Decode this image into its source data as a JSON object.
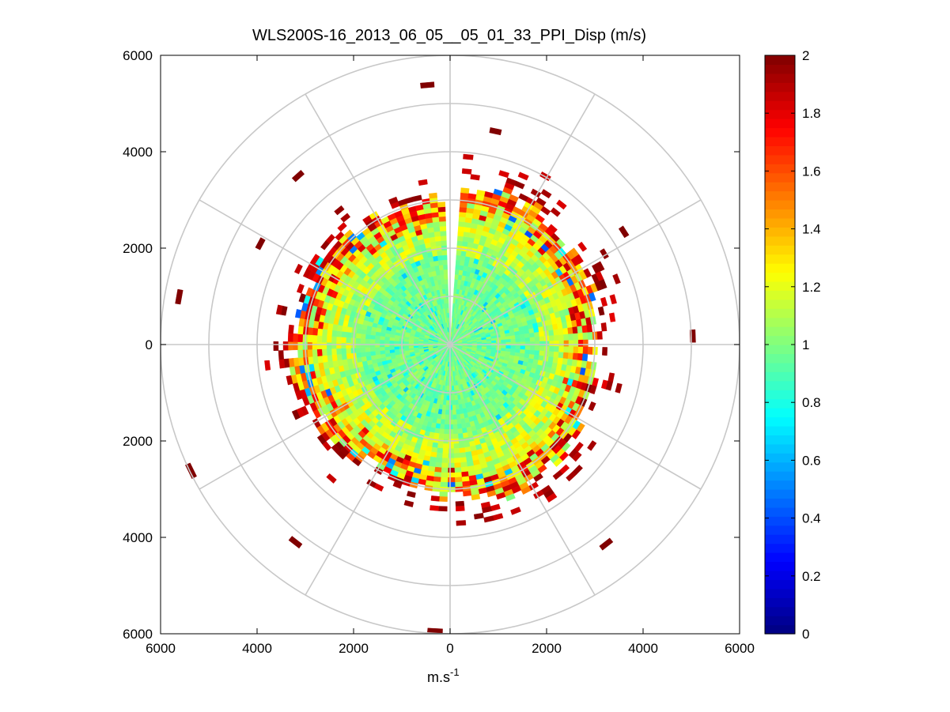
{
  "chart_data": {
    "type": "heatmap",
    "subtype": "polar-ppi",
    "title": "WLS200S-16_2013_06_05__05_01_33_PPI_Disp (m/s)",
    "xlabel": "m.s-1",
    "xlabel_base": "m.s",
    "xlabel_sup": "-1",
    "ylabel": "",
    "xlim": [
      -6000,
      6000
    ],
    "ylim": [
      -6000,
      6000
    ],
    "x_ticks": [
      -6000,
      -4000,
      -2000,
      0,
      2000,
      4000,
      6000
    ],
    "x_tick_labels": [
      "6000",
      "4000",
      "2000",
      "0",
      "2000",
      "4000",
      "6000"
    ],
    "y_ticks": [
      6000,
      4000,
      2000,
      0,
      -2000,
      -4000,
      -6000
    ],
    "y_tick_labels": [
      "6000",
      "4000",
      "2000",
      "0",
      "2000",
      "4000",
      "6000"
    ],
    "polar_grid": {
      "range_rings": [
        1000,
        2000,
        3000,
        4000,
        5000,
        6000
      ],
      "spoke_angles_deg": [
        0,
        30,
        60,
        90,
        120,
        150,
        180,
        210,
        240,
        270,
        300,
        330
      ]
    },
    "scan": {
      "gap_azimuth_deg": [
        -4,
        4
      ],
      "dense_max_range": 3100,
      "notes": "Values near center ~0.9-1.0 (green/cyan), rising to ~1.8-2.0 (red) near 2500-3300 m range; sparse dark-red bins beyond."
    },
    "colorbar": {
      "colormap": "jet",
      "range": [
        0,
        2
      ],
      "ticks": [
        0,
        0.2,
        0.4,
        0.6,
        0.8,
        1,
        1.2,
        1.4,
        1.6,
        1.8,
        2
      ],
      "tick_labels": [
        "0",
        "0.2",
        "0.4",
        "0.6",
        "0.8",
        "1",
        "1.2",
        "1.4",
        "1.6",
        "1.8",
        "2"
      ]
    },
    "outliers": [
      {
        "range": 5350,
        "azimuth_deg": -5,
        "value": 2
      },
      {
        "range": 4470,
        "azimuth_deg": 12,
        "value": 2
      },
      {
        "range": 4650,
        "azimuth_deg": -42,
        "value": 2
      },
      {
        "range": 5650,
        "azimuth_deg": -80,
        "value": 2
      },
      {
        "range": 4240,
        "azimuth_deg": 57,
        "value": 2
      },
      {
        "range": 4980,
        "azimuth_deg": 88,
        "value": 2
      },
      {
        "range": 5920,
        "azimuth_deg": -116,
        "value": 2
      },
      {
        "range": 5900,
        "azimuth_deg": 183,
        "value": 2
      },
      {
        "range": 5150,
        "azimuth_deg": 218,
        "value": 2
      },
      {
        "range": 5200,
        "azimuth_deg": 142,
        "value": 2
      },
      {
        "range": 4400,
        "azimuth_deg": -62,
        "value": 2
      }
    ]
  }
}
